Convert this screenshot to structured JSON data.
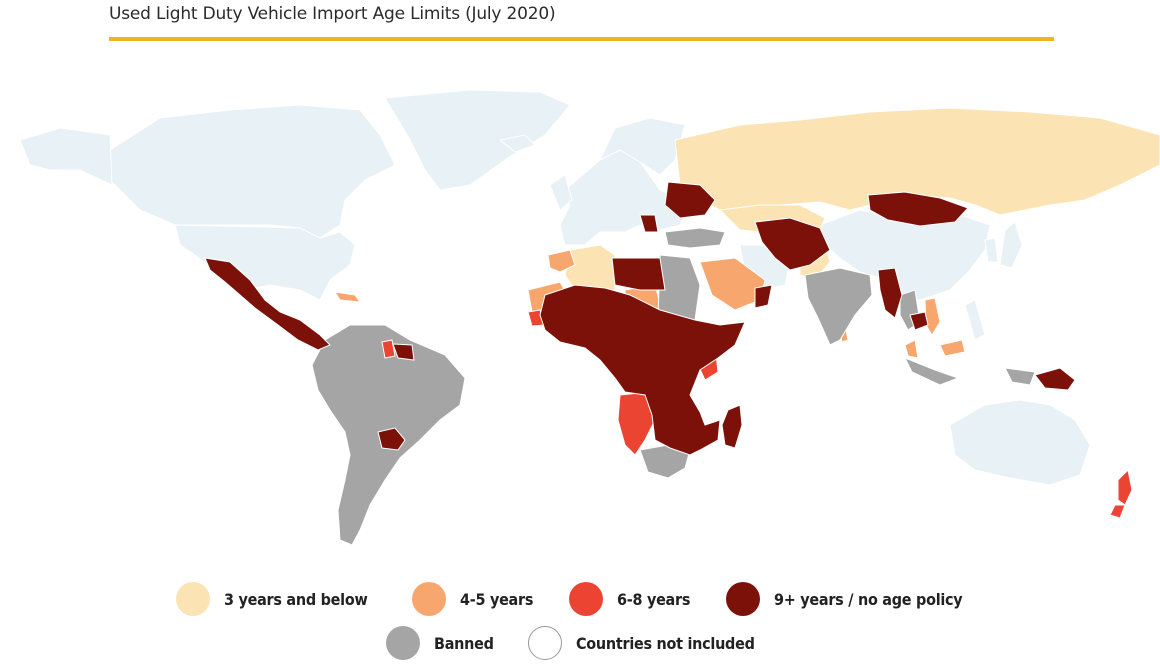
{
  "title": "Used Light Duty Vehicle Import Age Limits (July 2020)",
  "colors": {
    "title_rule": "#f0b323",
    "ocean": "#ffffff",
    "not_included": "#e8f1f5",
    "border": "#ffffff"
  },
  "legend": [
    {
      "label": "3 years and below",
      "color": "#fbe3b4"
    },
    {
      "label": "4-5 years",
      "color": "#f7a66e"
    },
    {
      "label": "6-8 years",
      "color": "#ec4433"
    },
    {
      "label": "9+ years / no age policy",
      "color": "#7b1109"
    },
    {
      "label": "Banned",
      "color": "#a5a5a5"
    },
    {
      "label": "Countries not included",
      "color": "#ffffff"
    }
  ]
}
